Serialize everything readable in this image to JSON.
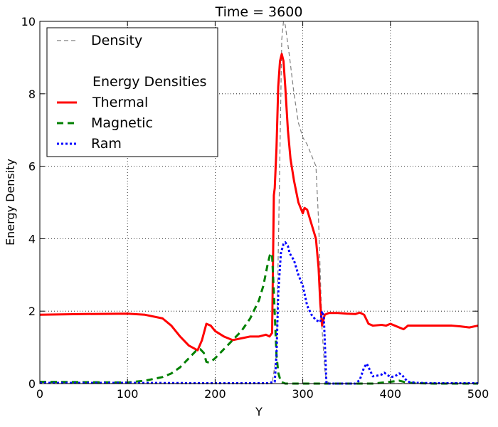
{
  "chart_data": {
    "type": "line",
    "title": "Time = 3600",
    "xlabel": "Y",
    "ylabel": "Energy Density",
    "xlim": [
      0,
      500
    ],
    "ylim": [
      0,
      10
    ],
    "grid": true,
    "legend_position": "top-left",
    "x_ticks": [
      "0",
      "100",
      "200",
      "300",
      "400",
      "500"
    ],
    "y_ticks": [
      "0",
      "2",
      "4",
      "6",
      "8",
      "10"
    ],
    "legend": {
      "density_label": "Density",
      "section_title": "Energy Densities",
      "thermal_label": "Thermal",
      "magnetic_label": "Magnetic",
      "ram_label": "Ram"
    },
    "series": [
      {
        "name": "Density",
        "color": "#808080",
        "style": "dashed",
        "x": [
          0,
          100,
          150,
          200,
          250,
          265,
          270,
          273,
          276,
          278,
          280,
          285,
          290,
          295,
          300,
          305,
          310,
          315,
          318,
          320,
          322,
          325,
          327,
          330,
          350,
          400,
          450,
          500
        ],
        "y": [
          0,
          0,
          0,
          0,
          0,
          0,
          0.8,
          5.0,
          9.5,
          10.0,
          9.9,
          9.0,
          8.0,
          7.2,
          6.8,
          6.6,
          6.3,
          6.0,
          4.5,
          3.0,
          1.5,
          0.4,
          0.1,
          0,
          0,
          0,
          0,
          0
        ]
      },
      {
        "name": "Thermal",
        "color": "#ff0000",
        "style": "solid",
        "x": [
          0,
          50,
          100,
          120,
          140,
          150,
          160,
          170,
          180,
          185,
          190,
          195,
          200,
          210,
          220,
          230,
          240,
          250,
          258,
          262,
          265,
          267,
          268,
          270,
          272,
          274,
          276,
          278,
          280,
          283,
          286,
          290,
          295,
          300,
          302,
          305,
          310,
          315,
          318,
          320,
          322,
          325,
          330,
          340,
          350,
          360,
          365,
          370,
          375,
          380,
          390,
          395,
          400,
          405,
          410,
          415,
          420,
          430,
          450,
          470,
          480,
          490,
          500
        ],
        "y": [
          1.9,
          1.92,
          1.93,
          1.9,
          1.8,
          1.6,
          1.3,
          1.05,
          0.92,
          1.2,
          1.65,
          1.6,
          1.45,
          1.3,
          1.2,
          1.25,
          1.3,
          1.3,
          1.35,
          1.3,
          1.4,
          5.2,
          5.4,
          6.5,
          8.2,
          8.9,
          9.1,
          8.9,
          8.2,
          7.0,
          6.2,
          5.6,
          5.0,
          4.7,
          4.85,
          4.8,
          4.4,
          4.0,
          3.2,
          2.2,
          1.6,
          1.9,
          1.95,
          1.95,
          1.93,
          1.92,
          1.96,
          1.9,
          1.65,
          1.6,
          1.62,
          1.6,
          1.65,
          1.6,
          1.55,
          1.5,
          1.6,
          1.6,
          1.6,
          1.6,
          1.58,
          1.55,
          1.6
        ]
      },
      {
        "name": "Magnetic",
        "color": "#008000",
        "style": "dashed",
        "x": [
          0,
          50,
          100,
          120,
          140,
          150,
          160,
          170,
          178,
          183,
          187,
          190,
          193,
          196,
          200,
          210,
          220,
          230,
          240,
          250,
          255,
          260,
          263,
          265,
          267,
          270,
          272,
          275,
          280,
          300,
          350,
          380,
          400,
          410,
          420,
          450,
          500
        ],
        "y": [
          0.05,
          0.04,
          0.03,
          0.08,
          0.18,
          0.28,
          0.45,
          0.7,
          0.9,
          0.95,
          0.85,
          0.6,
          0.58,
          0.62,
          0.7,
          0.95,
          1.2,
          1.45,
          1.8,
          2.3,
          2.7,
          3.3,
          3.6,
          3.55,
          2.5,
          0.8,
          0.3,
          0.05,
          0,
          0,
          0,
          0,
          0.05,
          0.08,
          0.02,
          0,
          0
        ]
      },
      {
        "name": "Ram",
        "color": "#0000ff",
        "style": "dotted",
        "x": [
          0,
          100,
          200,
          260,
          268,
          270,
          272,
          275,
          278,
          280,
          283,
          285,
          290,
          295,
          300,
          305,
          310,
          315,
          320,
          322,
          324,
          326,
          327,
          330,
          350,
          360,
          365,
          370,
          373,
          376,
          380,
          385,
          390,
          393,
          396,
          400,
          405,
          410,
          413,
          416,
          420,
          430,
          450,
          500
        ],
        "y": [
          0.02,
          0.02,
          0.01,
          0.01,
          0.05,
          0.8,
          2.5,
          3.6,
          3.85,
          3.9,
          3.8,
          3.6,
          3.4,
          3.0,
          2.7,
          2.15,
          1.9,
          1.75,
          1.7,
          2.0,
          1.85,
          0.6,
          0,
          0,
          0,
          0,
          0.1,
          0.45,
          0.55,
          0.4,
          0.2,
          0.22,
          0.25,
          0.3,
          0.25,
          0.18,
          0.2,
          0.28,
          0.25,
          0.15,
          0.05,
          0.02,
          0.01,
          0.01
        ]
      }
    ]
  }
}
